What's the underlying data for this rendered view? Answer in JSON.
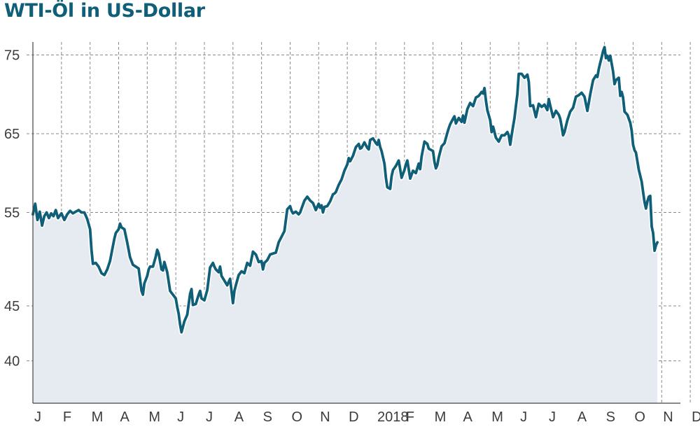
{
  "chart_data": {
    "type": "area",
    "title": "WTI-Öl in US-Dollar",
    "xlabel": "",
    "ylabel": "",
    "x_tick_labels": [
      "J",
      "F",
      "M",
      "A",
      "M",
      "J",
      "J",
      "A",
      "S",
      "O",
      "N",
      "D",
      "2018",
      "F",
      "M",
      "A",
      "M",
      "J",
      "J",
      "A",
      "S",
      "O",
      "N",
      "D"
    ],
    "y_tick_labels": [
      "75",
      "65",
      "55",
      "45",
      "40"
    ],
    "y_ticks": [
      75,
      65,
      55,
      45,
      40
    ],
    "grid": true,
    "line_color": "#0f5f78",
    "fill_color": "#e6ebf2",
    "series": [
      {
        "values": [
          [
            0.0,
            54.8
          ],
          [
            0.08,
            56.1
          ],
          [
            0.16,
            54.2
          ],
          [
            0.24,
            55.1
          ],
          [
            0.32,
            53.6
          ],
          [
            0.4,
            54.6
          ],
          [
            0.48,
            55.0
          ],
          [
            0.56,
            54.4
          ],
          [
            0.64,
            54.9
          ],
          [
            0.72,
            54.6
          ],
          [
            0.8,
            55.3
          ],
          [
            0.88,
            54.4
          ],
          [
            1.0,
            54.9
          ],
          [
            1.1,
            54.2
          ],
          [
            1.2,
            54.8
          ],
          [
            1.3,
            55.2
          ],
          [
            1.4,
            54.9
          ],
          [
            1.5,
            55.1
          ],
          [
            1.6,
            55.3
          ],
          [
            1.7,
            55.0
          ],
          [
            1.8,
            55.0
          ],
          [
            1.9,
            54.3
          ],
          [
            2.0,
            53.2
          ],
          [
            2.05,
            51.0
          ],
          [
            2.1,
            49.5
          ],
          [
            2.2,
            49.6
          ],
          [
            2.3,
            49.2
          ],
          [
            2.4,
            48.5
          ],
          [
            2.5,
            48.3
          ],
          [
            2.6,
            48.9
          ],
          [
            2.7,
            49.8
          ],
          [
            2.8,
            51.4
          ],
          [
            2.85,
            52.2
          ],
          [
            2.9,
            52.8
          ],
          [
            3.0,
            53.2
          ],
          [
            3.05,
            53.8
          ],
          [
            3.1,
            53.4
          ],
          [
            3.2,
            53.2
          ],
          [
            3.3,
            51.8
          ],
          [
            3.4,
            50.2
          ],
          [
            3.5,
            49.4
          ],
          [
            3.6,
            49.2
          ],
          [
            3.7,
            49.0
          ],
          [
            3.8,
            46.6
          ],
          [
            3.85,
            46.2
          ],
          [
            3.9,
            47.4
          ],
          [
            4.0,
            48.2
          ],
          [
            4.05,
            48.9
          ],
          [
            4.1,
            49.2
          ],
          [
            4.2,
            49.2
          ],
          [
            4.3,
            50.3
          ],
          [
            4.35,
            51.0
          ],
          [
            4.4,
            50.6
          ],
          [
            4.5,
            48.9
          ],
          [
            4.55,
            48.8
          ],
          [
            4.6,
            49.7
          ],
          [
            4.7,
            48.6
          ],
          [
            4.8,
            46.6
          ],
          [
            4.9,
            46.2
          ],
          [
            5.0,
            45.8
          ],
          [
            5.05,
            44.9
          ],
          [
            5.1,
            44.3
          ],
          [
            5.15,
            43.3
          ],
          [
            5.2,
            42.6
          ],
          [
            5.3,
            43.6
          ],
          [
            5.4,
            44.2
          ],
          [
            5.5,
            46.3
          ],
          [
            5.55,
            46.8
          ],
          [
            5.6,
            45.1
          ],
          [
            5.7,
            45.2
          ],
          [
            5.8,
            46.2
          ],
          [
            5.85,
            46.6
          ],
          [
            5.9,
            45.8
          ],
          [
            6.0,
            45.6
          ],
          [
            6.1,
            46.7
          ],
          [
            6.15,
            47.9
          ],
          [
            6.2,
            49.1
          ],
          [
            6.3,
            49.6
          ],
          [
            6.35,
            49.2
          ],
          [
            6.4,
            48.9
          ],
          [
            6.5,
            48.6
          ],
          [
            6.55,
            49.2
          ],
          [
            6.6,
            48.2
          ],
          [
            6.7,
            47.7
          ],
          [
            6.8,
            47.2
          ],
          [
            6.9,
            47.9
          ],
          [
            7.0,
            45.3
          ],
          [
            7.05,
            46.6
          ],
          [
            7.1,
            47.2
          ],
          [
            7.2,
            48.3
          ],
          [
            7.3,
            48.7
          ],
          [
            7.4,
            48.5
          ],
          [
            7.5,
            49.6
          ],
          [
            7.6,
            49.3
          ],
          [
            7.7,
            50.8
          ],
          [
            7.8,
            50.5
          ],
          [
            7.9,
            49.7
          ],
          [
            8.0,
            49.8
          ],
          [
            8.05,
            48.9
          ],
          [
            8.1,
            49.6
          ],
          [
            8.2,
            49.9
          ],
          [
            8.3,
            50.5
          ],
          [
            8.4,
            50.6
          ],
          [
            8.5,
            50.7
          ],
          [
            8.6,
            51.8
          ],
          [
            8.7,
            52.4
          ],
          [
            8.8,
            53.0
          ],
          [
            8.9,
            55.4
          ],
          [
            9.0,
            55.8
          ],
          [
            9.05,
            55.2
          ],
          [
            9.1,
            54.9
          ],
          [
            9.2,
            55.1
          ],
          [
            9.3,
            54.8
          ],
          [
            9.35,
            55.0
          ],
          [
            9.4,
            55.5
          ],
          [
            9.5,
            56.5
          ],
          [
            9.6,
            57.0
          ],
          [
            9.7,
            56.5
          ],
          [
            9.8,
            56.2
          ],
          [
            9.9,
            55.3
          ],
          [
            10.0,
            56.1
          ],
          [
            10.05,
            55.6
          ],
          [
            10.1,
            55.9
          ],
          [
            10.15,
            55.0
          ],
          [
            10.2,
            55.7
          ],
          [
            10.3,
            55.8
          ],
          [
            10.4,
            56.4
          ],
          [
            10.5,
            57.3
          ],
          [
            10.55,
            57.4
          ],
          [
            10.6,
            57.6
          ],
          [
            10.7,
            58.5
          ],
          [
            10.8,
            59.2
          ],
          [
            10.9,
            60.3
          ],
          [
            11.0,
            61.1
          ],
          [
            11.05,
            61.9
          ],
          [
            11.1,
            61.5
          ],
          [
            11.2,
            62.2
          ],
          [
            11.3,
            63.3
          ],
          [
            11.4,
            63.7
          ],
          [
            11.45,
            63.1
          ],
          [
            11.5,
            63.2
          ],
          [
            11.6,
            63.9
          ],
          [
            11.7,
            63.2
          ],
          [
            11.75,
            63.0
          ],
          [
            11.8,
            64.2
          ],
          [
            11.9,
            64.4
          ],
          [
            12.0,
            63.8
          ],
          [
            12.05,
            63.6
          ],
          [
            12.1,
            64.2
          ],
          [
            12.15,
            63.3
          ],
          [
            12.2,
            62.8
          ],
          [
            12.3,
            61.2
          ],
          [
            12.35,
            59.4
          ],
          [
            12.4,
            58.2
          ],
          [
            12.5,
            58.0
          ],
          [
            12.55,
            59.6
          ],
          [
            12.6,
            60.4
          ],
          [
            12.7,
            60.9
          ],
          [
            12.8,
            61.6
          ],
          [
            12.9,
            59.4
          ],
          [
            13.0,
            60.4
          ],
          [
            13.05,
            61.1
          ],
          [
            13.1,
            61.6
          ],
          [
            13.2,
            59.3
          ],
          [
            13.3,
            60.3
          ],
          [
            13.4,
            60.0
          ],
          [
            13.5,
            61.2
          ],
          [
            13.55,
            60.5
          ],
          [
            13.6,
            62.1
          ],
          [
            13.7,
            64.0
          ],
          [
            13.8,
            63.7
          ],
          [
            13.85,
            63.1
          ],
          [
            13.9,
            63.0
          ],
          [
            14.0,
            62.8
          ],
          [
            14.05,
            61.4
          ],
          [
            14.1,
            60.6
          ],
          [
            14.15,
            61.0
          ],
          [
            14.2,
            62.0
          ],
          [
            14.3,
            63.4
          ],
          [
            14.4,
            63.8
          ],
          [
            14.5,
            65.1
          ],
          [
            14.55,
            65.7
          ],
          [
            14.6,
            66.2
          ],
          [
            14.7,
            66.9
          ],
          [
            14.75,
            67.2
          ],
          [
            14.8,
            66.3
          ],
          [
            14.9,
            67.0
          ],
          [
            15.0,
            66.5
          ],
          [
            15.05,
            67.3
          ],
          [
            15.1,
            66.4
          ],
          [
            15.2,
            68.1
          ],
          [
            15.3,
            68.9
          ],
          [
            15.4,
            68.5
          ],
          [
            15.5,
            69.6
          ],
          [
            15.6,
            69.8
          ],
          [
            15.7,
            70.3
          ],
          [
            15.75,
            70.1
          ],
          [
            15.8,
            70.8
          ],
          [
            15.85,
            69.2
          ],
          [
            15.9,
            68.0
          ],
          [
            16.0,
            66.7
          ],
          [
            16.05,
            65.2
          ],
          [
            16.1,
            65.9
          ],
          [
            16.2,
            64.5
          ],
          [
            16.3,
            64.0
          ],
          [
            16.4,
            64.8
          ],
          [
            16.5,
            64.8
          ],
          [
            16.6,
            65.2
          ],
          [
            16.65,
            64.8
          ],
          [
            16.7,
            63.6
          ],
          [
            16.75,
            64.8
          ],
          [
            16.8,
            65.9
          ],
          [
            16.85,
            67.0
          ],
          [
            16.9,
            68.5
          ],
          [
            16.95,
            70.0
          ],
          [
            17.0,
            72.6
          ],
          [
            17.1,
            72.6
          ],
          [
            17.2,
            72.1
          ],
          [
            17.3,
            72.5
          ],
          [
            17.35,
            71.6
          ],
          [
            17.4,
            68.5
          ],
          [
            17.5,
            68.6
          ],
          [
            17.6,
            67.1
          ],
          [
            17.7,
            68.8
          ],
          [
            17.8,
            68.4
          ],
          [
            17.9,
            68.7
          ],
          [
            18.0,
            68.0
          ],
          [
            18.05,
            69.4
          ],
          [
            18.1,
            68.6
          ],
          [
            18.2,
            67.1
          ],
          [
            18.3,
            67.9
          ],
          [
            18.4,
            67.4
          ],
          [
            18.45,
            66.9
          ],
          [
            18.5,
            65.9
          ],
          [
            18.55,
            64.8
          ],
          [
            18.6,
            65.2
          ],
          [
            18.7,
            66.7
          ],
          [
            18.8,
            67.8
          ],
          [
            18.9,
            68.3
          ],
          [
            19.0,
            69.7
          ],
          [
            19.1,
            69.9
          ],
          [
            19.2,
            70.2
          ],
          [
            19.3,
            69.7
          ],
          [
            19.4,
            67.9
          ],
          [
            19.45,
            68.9
          ],
          [
            19.5,
            70.0
          ],
          [
            19.6,
            71.8
          ],
          [
            19.7,
            72.4
          ],
          [
            19.75,
            72.2
          ],
          [
            19.8,
            73.2
          ],
          [
            19.85,
            74.0
          ],
          [
            19.9,
            74.7
          ],
          [
            19.95,
            75.5
          ],
          [
            20.0,
            76.0
          ],
          [
            20.05,
            74.6
          ],
          [
            20.1,
            74.9
          ],
          [
            20.15,
            74.3
          ],
          [
            20.2,
            74.9
          ],
          [
            20.3,
            72.9
          ],
          [
            20.35,
            71.3
          ],
          [
            20.4,
            71.8
          ],
          [
            20.5,
            72.1
          ],
          [
            20.55,
            69.8
          ],
          [
            20.6,
            70.3
          ],
          [
            20.65,
            69.6
          ],
          [
            20.7,
            67.8
          ],
          [
            20.8,
            67.4
          ],
          [
            20.85,
            66.9
          ],
          [
            20.9,
            66.4
          ],
          [
            20.95,
            65.4
          ],
          [
            21.0,
            63.6
          ],
          [
            21.05,
            62.9
          ],
          [
            21.1,
            62.6
          ],
          [
            21.2,
            60.4
          ],
          [
            21.3,
            58.9
          ],
          [
            21.35,
            57.6
          ],
          [
            21.4,
            56.3
          ],
          [
            21.45,
            55.5
          ],
          [
            21.5,
            56.4
          ],
          [
            21.55,
            57.0
          ],
          [
            21.6,
            57.1
          ],
          [
            21.65,
            53.5
          ],
          [
            21.7,
            52.8
          ],
          [
            21.75,
            50.9
          ],
          [
            21.8,
            51.5
          ],
          [
            21.85,
            51.8
          ]
        ]
      }
    ]
  }
}
